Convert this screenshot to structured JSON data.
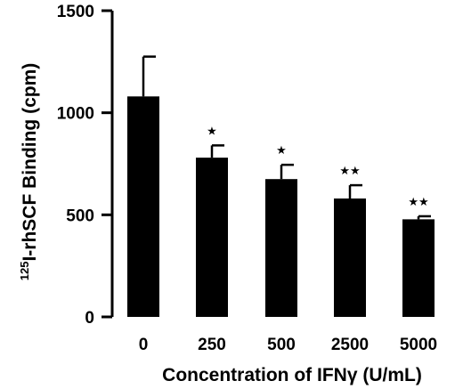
{
  "chart_data": {
    "type": "bar",
    "categories": [
      "0",
      "250",
      "500",
      "2500",
      "5000"
    ],
    "values": [
      1080,
      780,
      675,
      580,
      478
    ],
    "errors": [
      195,
      60,
      70,
      65,
      15
    ],
    "significance": [
      "",
      "★",
      "★",
      "★★",
      "★★"
    ],
    "ylim": [
      0,
      1500
    ],
    "yticks": [
      "0",
      "500",
      "1000",
      "1500"
    ],
    "ytick_values": [
      0,
      500,
      1000,
      1500
    ],
    "ylabel": {
      "superscript": "125",
      "text": "I-rhSCF Binding (cpm)"
    },
    "xlabel": "Concentration of IFNγ (U/mL)",
    "bar_color": "#000000",
    "grid": false
  }
}
